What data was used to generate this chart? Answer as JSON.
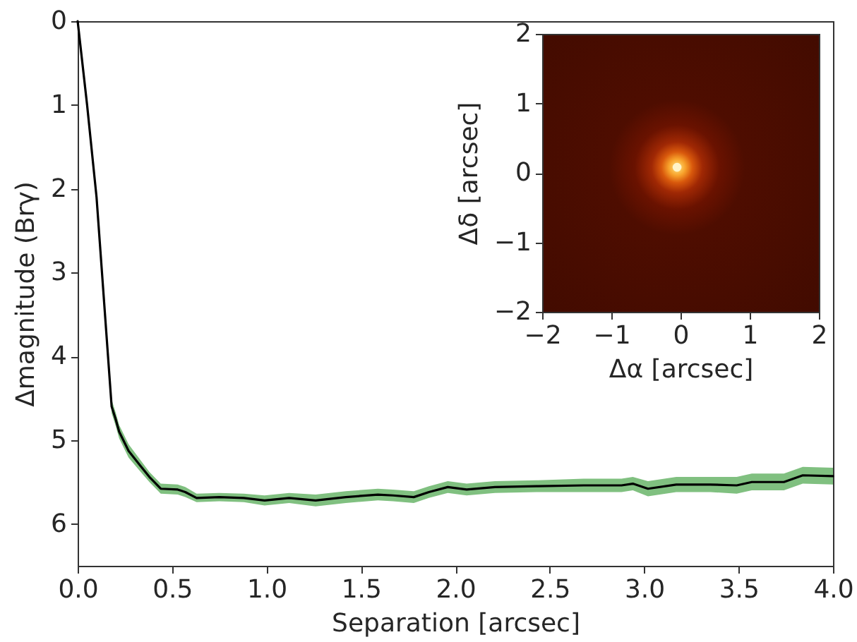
{
  "chart_data": [
    {
      "type": "line",
      "xlabel": "Separation [arcsec]",
      "ylabel": "Δmagnitude (Brγ)",
      "xlim": [
        0,
        4
      ],
      "ylim": [
        6.5,
        0
      ],
      "xticks": [
        {
          "value": 0,
          "label": "0.0"
        },
        0.5,
        {
          "value": 1,
          "label": "1.0"
        },
        1.5,
        {
          "value": 2,
          "label": "2.0"
        },
        2.5,
        {
          "value": 3,
          "label": "3.0"
        },
        3.5,
        {
          "value": 4,
          "label": "4.0"
        }
      ],
      "yticks": [
        0,
        1,
        2,
        3,
        4,
        5,
        6
      ],
      "x": [
        0,
        0.05,
        0.1,
        0.18,
        0.2,
        0.22,
        0.27,
        0.33,
        0.38,
        0.44,
        0.53,
        0.57,
        0.63,
        0.75,
        0.88,
        0.99,
        1.12,
        1.26,
        1.42,
        1.59,
        1.67,
        1.78,
        1.86,
        1.96,
        2.06,
        2.21,
        2.43,
        2.68,
        2.88,
        2.94,
        3.02,
        3.17,
        3.35,
        3.49,
        3.57,
        3.74,
        3.84,
        4.0
      ],
      "series": [
        {
          "color": "#000000",
          "values": [
            0,
            1.0,
            2.1,
            4.6,
            4.74,
            4.9,
            5.13,
            5.3,
            5.44,
            5.58,
            5.59,
            5.62,
            5.69,
            5.68,
            5.69,
            5.72,
            5.69,
            5.72,
            5.68,
            5.65,
            5.66,
            5.68,
            5.62,
            5.56,
            5.59,
            5.56,
            5.55,
            5.54,
            5.54,
            5.52,
            5.58,
            5.53,
            5.53,
            5.54,
            5.5,
            5.5,
            5.42,
            5.43
          ],
          "lower": [
            0,
            0.98,
            2.07,
            4.52,
            4.66,
            4.82,
            5.05,
            5.23,
            5.38,
            5.52,
            5.53,
            5.56,
            5.64,
            5.63,
            5.64,
            5.66,
            5.63,
            5.65,
            5.61,
            5.58,
            5.59,
            5.61,
            5.55,
            5.49,
            5.52,
            5.49,
            5.48,
            5.46,
            5.46,
            5.44,
            5.49,
            5.44,
            5.44,
            5.44,
            5.4,
            5.4,
            5.32,
            5.33
          ],
          "upper": [
            0,
            1.02,
            2.13,
            4.68,
            4.82,
            4.98,
            5.21,
            5.37,
            5.5,
            5.64,
            5.65,
            5.68,
            5.74,
            5.73,
            5.74,
            5.78,
            5.75,
            5.79,
            5.75,
            5.72,
            5.73,
            5.75,
            5.69,
            5.63,
            5.66,
            5.63,
            5.62,
            5.62,
            5.62,
            5.6,
            5.67,
            5.62,
            5.62,
            5.64,
            5.6,
            5.6,
            5.52,
            5.53
          ]
        }
      ]
    },
    {
      "type": "scatter",
      "xlabel": "Δα [arcsec]",
      "ylabel": "Δδ [arcsec]",
      "xlim": [
        -2,
        2
      ],
      "ylim": [
        -2,
        2
      ],
      "xticks": [
        -2,
        -1,
        0,
        1,
        2
      ],
      "yticks": [
        -2,
        -1,
        0,
        1,
        2
      ],
      "marker": "circle",
      "x": [
        -0.05
      ],
      "series": [
        {
          "color": "#fff4c8",
          "values": [
            0.08
          ]
        }
      ]
    }
  ]
}
